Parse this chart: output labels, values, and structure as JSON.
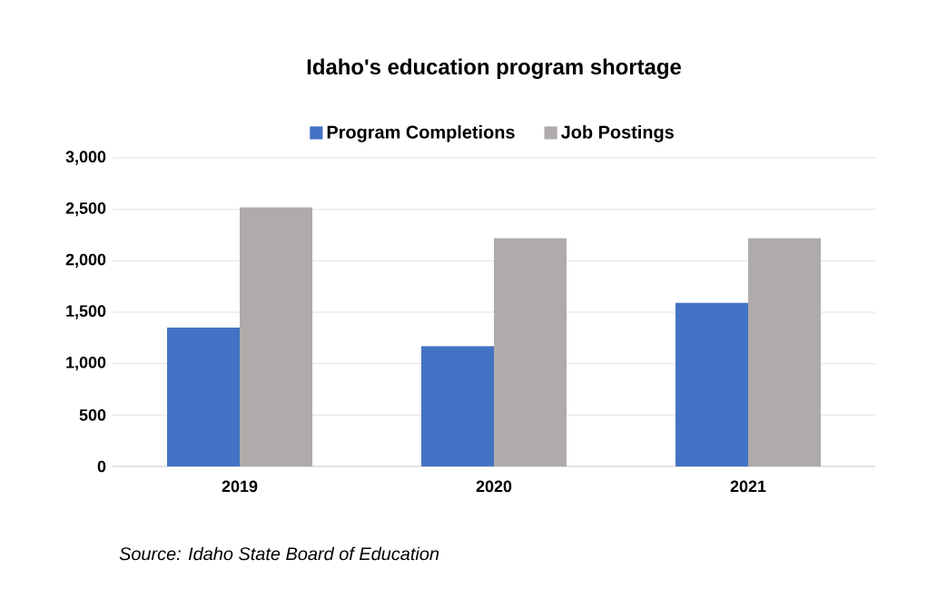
{
  "chart_data": {
    "type": "bar",
    "title": "Idaho's education program shortage",
    "categories": [
      "2019",
      "2020",
      "2021"
    ],
    "series": [
      {
        "name": "Program Completions",
        "color": "#4472c4",
        "values": [
          1350,
          1170,
          1590
        ]
      },
      {
        "name": "Job Postings",
        "color": "#afabab",
        "values": [
          2520,
          2220,
          2220
        ]
      }
    ],
    "ylim": [
      0,
      3000
    ],
    "yticks": [
      {
        "value": 0,
        "label": "0"
      },
      {
        "value": 500,
        "label": "500"
      },
      {
        "value": 1000,
        "label": "1,000"
      },
      {
        "value": 1500,
        "label": "1,500"
      },
      {
        "value": 2000,
        "label": "2,000"
      },
      {
        "value": 2500,
        "label": "2,500"
      },
      {
        "value": 3000,
        "label": "3,000"
      }
    ],
    "grid": "y",
    "legend": "top",
    "annotations": [
      "Source: Idaho State Board of Education"
    ]
  }
}
